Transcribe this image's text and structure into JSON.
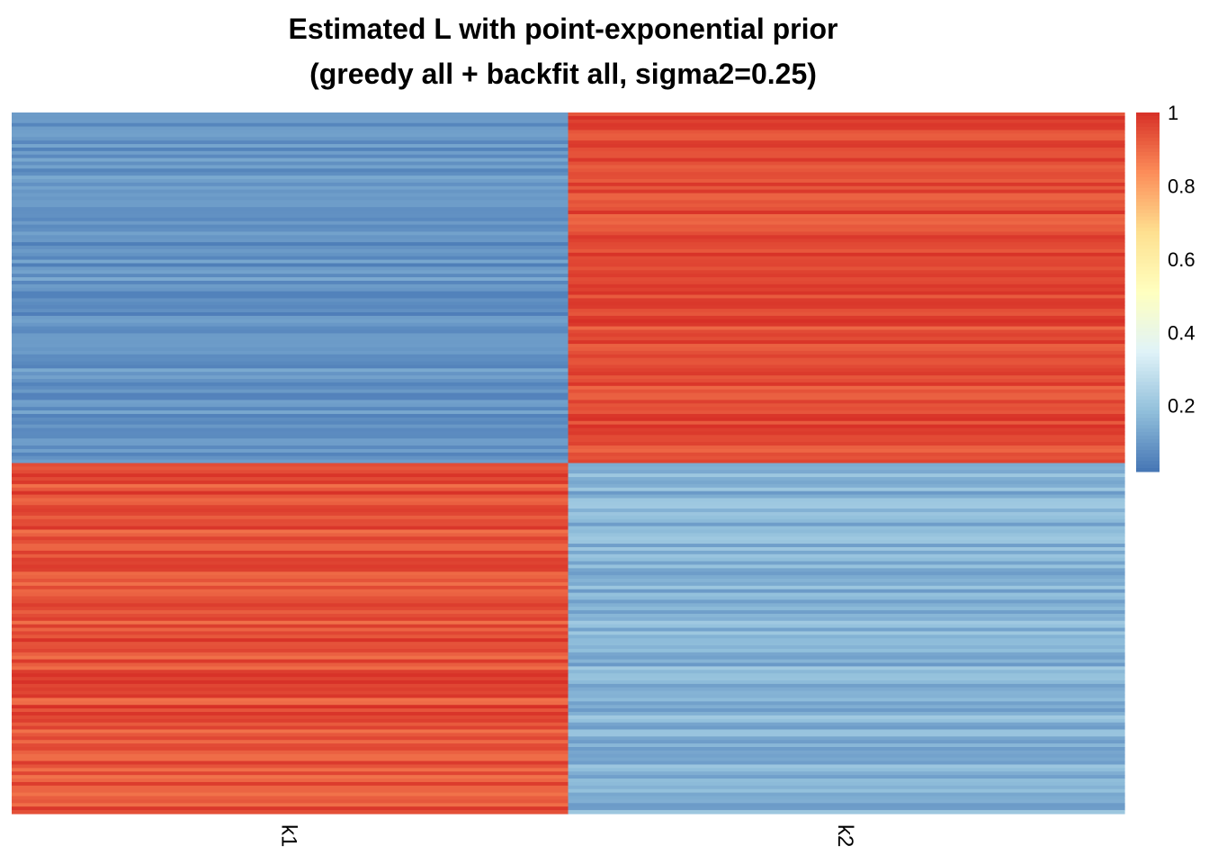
{
  "title_lines": [
    "Estimated L with point-exponential prior",
    "(greedy all + backfit all, sigma2=0.25)"
  ],
  "chart_data": {
    "type": "heatmap",
    "title": "Estimated L with point-exponential prior (greedy all + backfit all, sigma2=0.25)",
    "columns": [
      "k1",
      "k2"
    ],
    "n_rows": 200,
    "row_blocks": [
      {
        "rows": "1-100",
        "k1_range": [
          0.02,
          0.12
        ],
        "k2_range": [
          0.9,
          1.0
        ]
      },
      {
        "rows": "101-200",
        "k1_range": [
          0.88,
          1.0
        ],
        "k2_range": [
          0.08,
          0.2
        ]
      }
    ],
    "color_scale": {
      "stops": [
        "#4575b4",
        "#91bfdb",
        "#e0f3f8",
        "#ffffbf",
        "#fee090",
        "#fc8d59",
        "#d73027"
      ],
      "min": 0,
      "max": 1,
      "breaks": [
        0.2,
        0.4,
        0.6,
        0.8,
        1
      ],
      "break_labels": [
        "0.2",
        "0.4",
        "0.6",
        "0.8",
        "1"
      ]
    },
    "legend_position": "right",
    "grid": false
  }
}
